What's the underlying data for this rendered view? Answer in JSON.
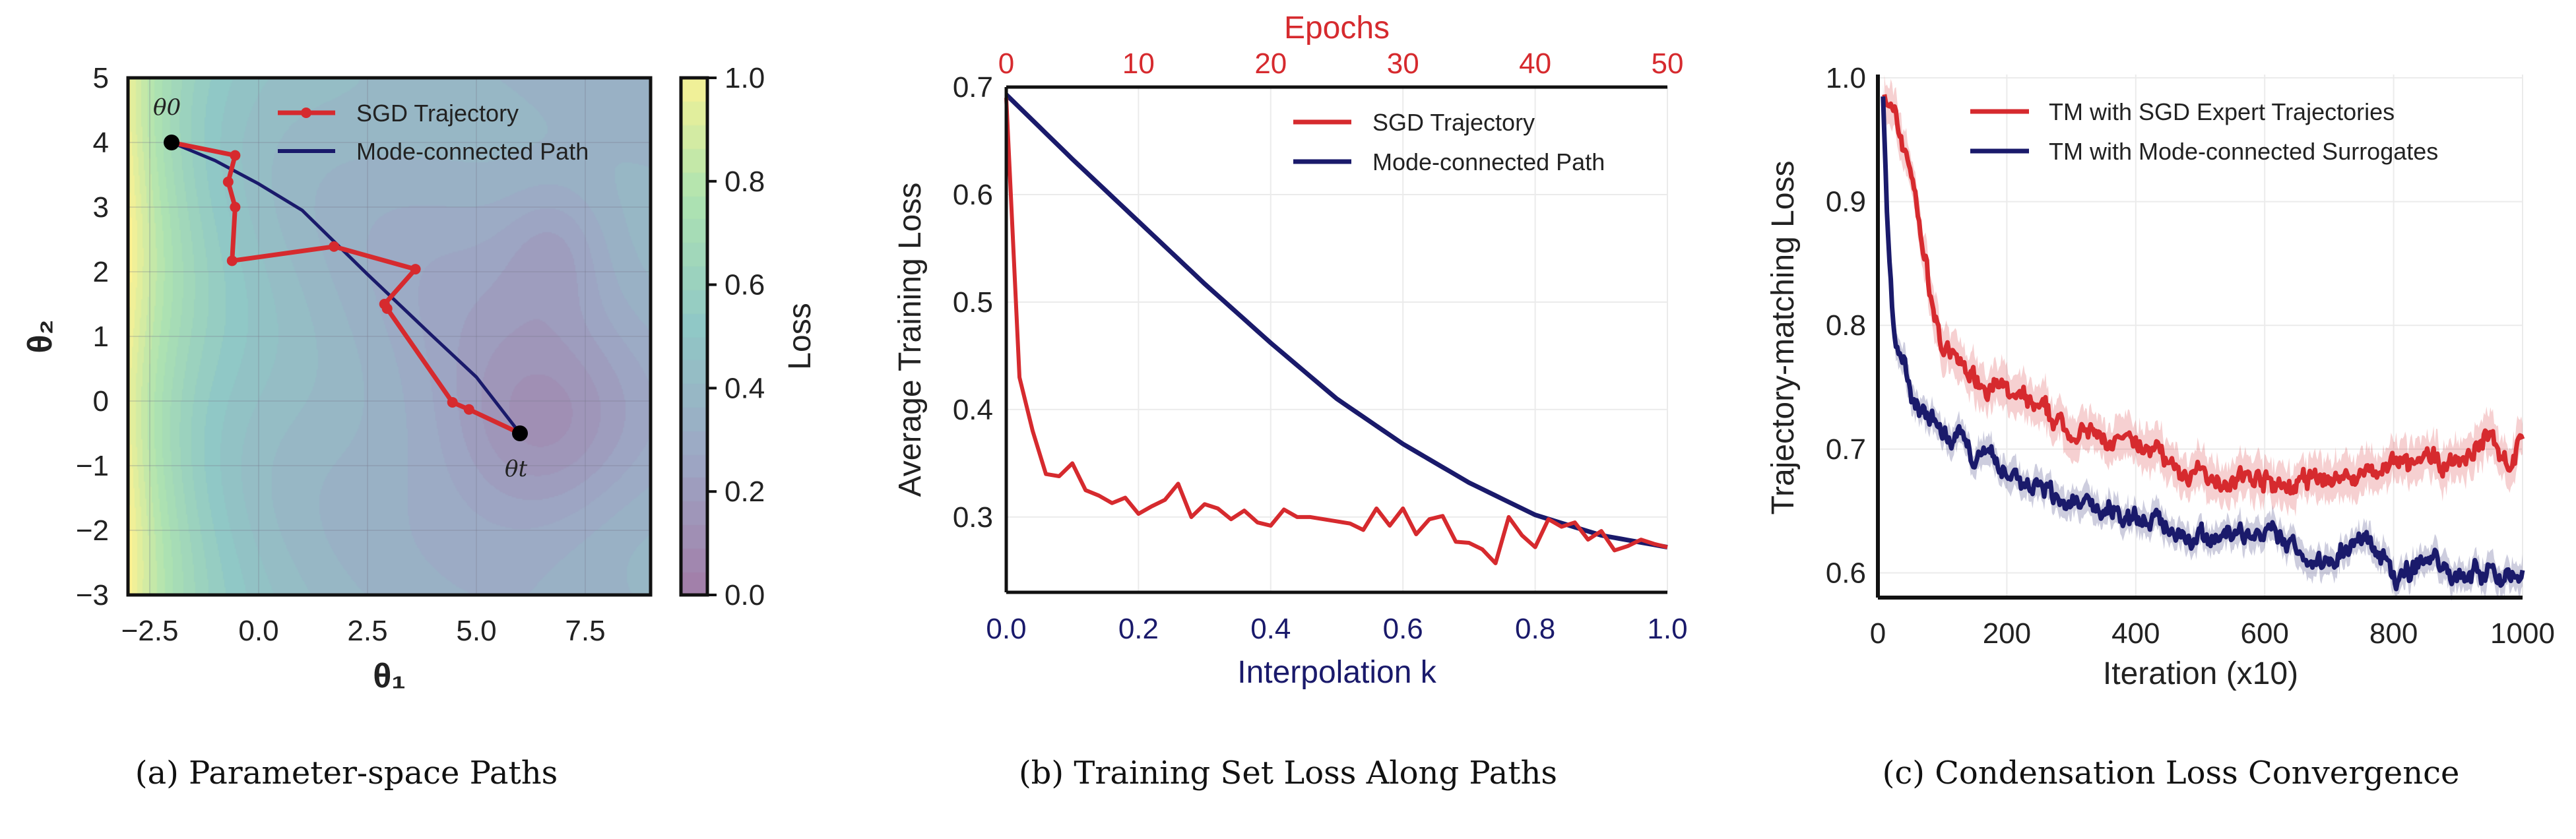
{
  "colors": {
    "red": "#d62a2e",
    "navy": "#1a1a6b",
    "grid": "#ebebeb"
  },
  "chart_data": [
    {
      "type": "heatmap",
      "caption": "(a) Parameter-space Paths",
      "xlabel": "θ₁",
      "ylabel": "θ₂",
      "xlim": [
        -3,
        9
      ],
      "ylim": [
        -3,
        5
      ],
      "xticks": [
        "−2.5",
        "0.0",
        "2.5",
        "5.0",
        "7.5"
      ],
      "xtick_values": [
        -2.5,
        0,
        2.5,
        5,
        7.5
      ],
      "yticks": [
        "−3",
        "−2",
        "−1",
        "0",
        "1",
        "2",
        "3",
        "4",
        "5"
      ],
      "ytick_values": [
        -3,
        -2,
        -1,
        0,
        1,
        2,
        3,
        4,
        5
      ],
      "colorbar": {
        "label": "Loss",
        "range": [
          0,
          1
        ],
        "ticks": [
          "0.0",
          "0.2",
          "0.4",
          "0.6",
          "0.8",
          "1.0"
        ],
        "tick_values": [
          0,
          0.2,
          0.4,
          0.6,
          0.8,
          1.0
        ]
      },
      "legend": [
        "SGD Trajectory",
        "Mode-connected Path"
      ],
      "legend_position": "top-right",
      "annotations": {
        "start": "θ0",
        "end": "θt"
      },
      "series": [
        {
          "name": "SGD Trajectory",
          "points": [
            [
              -2,
              4
            ],
            [
              -0.54,
              3.8
            ],
            [
              -0.7,
              3.39
            ],
            [
              -0.54,
              3.0
            ],
            [
              -0.61,
              2.17
            ],
            [
              1.73,
              2.39
            ],
            [
              3.6,
              2.04
            ],
            [
              2.89,
              1.5
            ],
            [
              2.95,
              1.43
            ],
            [
              4.45,
              -0.02
            ],
            [
              4.83,
              -0.13
            ],
            [
              6.0,
              -0.5
            ]
          ]
        },
        {
          "name": "Mode-connected Path",
          "points": [
            [
              -2,
              4
            ],
            [
              -1,
              3.72
            ],
            [
              0,
              3.36
            ],
            [
              1,
              2.95
            ],
            [
              2.5,
              1.96
            ],
            [
              4,
              1.0
            ],
            [
              5,
              0.37
            ],
            [
              6,
              -0.5
            ]
          ]
        }
      ]
    },
    {
      "type": "line",
      "caption": "(b) Training Set Loss Along Paths",
      "xlabel": "Interpolation k",
      "x2label": "Epochs",
      "ylabel": "Average Training Loss",
      "xlim": [
        0,
        1
      ],
      "ylim": [
        0.23,
        0.7
      ],
      "x2lim": [
        0,
        50
      ],
      "xticks": [
        "0.0",
        "0.2",
        "0.4",
        "0.6",
        "0.8",
        "1.0"
      ],
      "xtick_values": [
        0,
        0.2,
        0.4,
        0.6,
        0.8,
        1.0
      ],
      "x2ticks": [
        "0",
        "10",
        "20",
        "30",
        "40",
        "50"
      ],
      "x2tick_values": [
        0,
        10,
        20,
        30,
        40,
        50
      ],
      "yticks": [
        "0.3",
        "0.4",
        "0.5",
        "0.6",
        "0.7"
      ],
      "ytick_values": [
        0.3,
        0.4,
        0.5,
        0.6,
        0.7
      ],
      "legend": [
        "SGD Trajectory",
        "Mode-connected Path"
      ],
      "legend_position": "top-right",
      "series": [
        {
          "name": "SGD Trajectory",
          "x_step": 0.02,
          "values": [
            0.69,
            0.43,
            0.38,
            0.34,
            0.338,
            0.35,
            0.325,
            0.32,
            0.313,
            0.318,
            0.303,
            0.31,
            0.316,
            0.331,
            0.3,
            0.312,
            0.308,
            0.298,
            0.306,
            0.295,
            0.292,
            0.307,
            0.3,
            0.3,
            0.298,
            0.296,
            0.294,
            0.288,
            0.308,
            0.292,
            0.308,
            0.284,
            0.298,
            0.301,
            0.277,
            0.276,
            0.27,
            0.257,
            0.3,
            0.283,
            0.272,
            0.298,
            0.291,
            0.295,
            0.279,
            0.287,
            0.269,
            0.273,
            0.279,
            0.275,
            0.272
          ]
        },
        {
          "name": "Mode-connected Path",
          "x_step": 0.1,
          "values": [
            0.693,
            0.633,
            0.575,
            0.517,
            0.462,
            0.41,
            0.368,
            0.332,
            0.302,
            0.283,
            0.272
          ]
        }
      ]
    },
    {
      "type": "line",
      "caption": "(c) Condensation Loss Convergence",
      "xlabel": "Iteration (x10)",
      "ylabel": "Trajectory-matching Loss",
      "xlim": [
        0,
        1000
      ],
      "ylim": [
        0.58,
        1.0
      ],
      "xticks": [
        "0",
        "200",
        "400",
        "600",
        "800",
        "1000"
      ],
      "xtick_values": [
        0,
        200,
        400,
        600,
        800,
        1000
      ],
      "yticks": [
        "0.6",
        "0.7",
        "0.8",
        "0.9",
        "1.0"
      ],
      "ytick_values": [
        0.6,
        0.7,
        0.8,
        0.9,
        1.0
      ],
      "legend": [
        "TM with SGD Expert Trajectories",
        "TM with Mode-connected Surrogates"
      ],
      "legend_position": "top-right",
      "series": [
        {
          "name": "TM with SGD Expert Trajectories",
          "points": [
            [
              10,
              0.99
            ],
            [
              50,
              0.93
            ],
            [
              80,
              0.83
            ],
            [
              100,
              0.78
            ],
            [
              150,
              0.76
            ],
            [
              200,
              0.745
            ],
            [
              250,
              0.73
            ],
            [
              300,
              0.715
            ],
            [
              400,
              0.7
            ],
            [
              440,
              0.7
            ],
            [
              460,
              0.68
            ],
            [
              600,
              0.675
            ],
            [
              620,
              0.668
            ],
            [
              700,
              0.675
            ],
            [
              800,
              0.685
            ],
            [
              900,
              0.69
            ],
            [
              950,
              0.71
            ],
            [
              980,
              0.69
            ],
            [
              1000,
              0.705
            ]
          ]
        },
        {
          "name": "TM with Mode-connected Surrogates",
          "points": [
            [
              8,
              0.99
            ],
            [
              15,
              0.88
            ],
            [
              25,
              0.79
            ],
            [
              50,
              0.745
            ],
            [
              100,
              0.71
            ],
            [
              200,
              0.68
            ],
            [
              300,
              0.655
            ],
            [
              400,
              0.645
            ],
            [
              500,
              0.63
            ],
            [
              600,
              0.63
            ],
            [
              650,
              0.62
            ],
            [
              680,
              0.608
            ],
            [
              750,
              0.628
            ],
            [
              770,
              0.62
            ],
            [
              800,
              0.595
            ],
            [
              850,
              0.612
            ],
            [
              900,
              0.6
            ],
            [
              1000,
              0.601
            ]
          ]
        }
      ]
    }
  ]
}
